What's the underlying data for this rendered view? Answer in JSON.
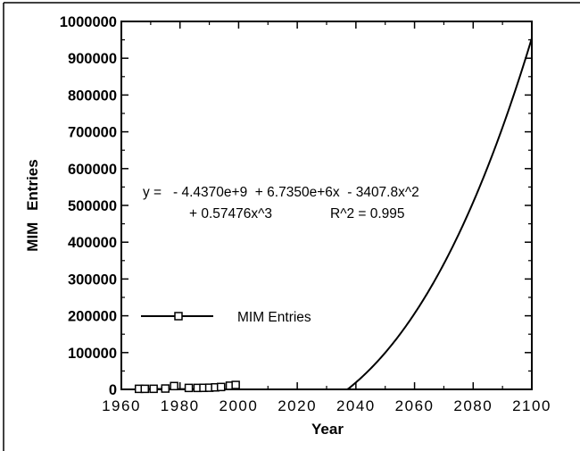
{
  "chart_data": {
    "type": "line",
    "title": "",
    "xlabel": "Year",
    "ylabel": "MIM Entries",
    "xlim": [
      1960,
      2100
    ],
    "ylim": [
      0,
      1000000
    ],
    "x_ticks": [
      "1960",
      "1980",
      "2000",
      "2020",
      "2040",
      "2060",
      "2080",
      "2100"
    ],
    "y_ticks": [
      "0",
      "100000",
      "200000",
      "300000",
      "400000",
      "500000",
      "600000",
      "700000",
      "800000",
      "900000",
      "1000000"
    ],
    "series": [
      {
        "name": "MIM Entries",
        "marker": "open-square",
        "x": [
          1966,
          1968,
          1971,
          1975,
          1978,
          1983,
          1986,
          1988,
          1990,
          1992,
          1994,
          1997,
          1999
        ],
        "y": [
          1500,
          1500,
          1600,
          2300,
          9000,
          4000,
          4000,
          4200,
          4500,
          5500,
          6500,
          10000,
          12000
        ]
      }
    ],
    "fit": {
      "coefficients": [
        -4437000000,
        6735000,
        -3407.8,
        0.57476
      ],
      "line1": "y =   - 4.4370e+9  + 6.7350e+6x  - 3407.8x^2",
      "line2": "+ 0.57476x^3",
      "r2": "R^2 = 0.995"
    },
    "legend": {
      "label": "MIM Entries",
      "position": "left"
    },
    "grid": false
  }
}
